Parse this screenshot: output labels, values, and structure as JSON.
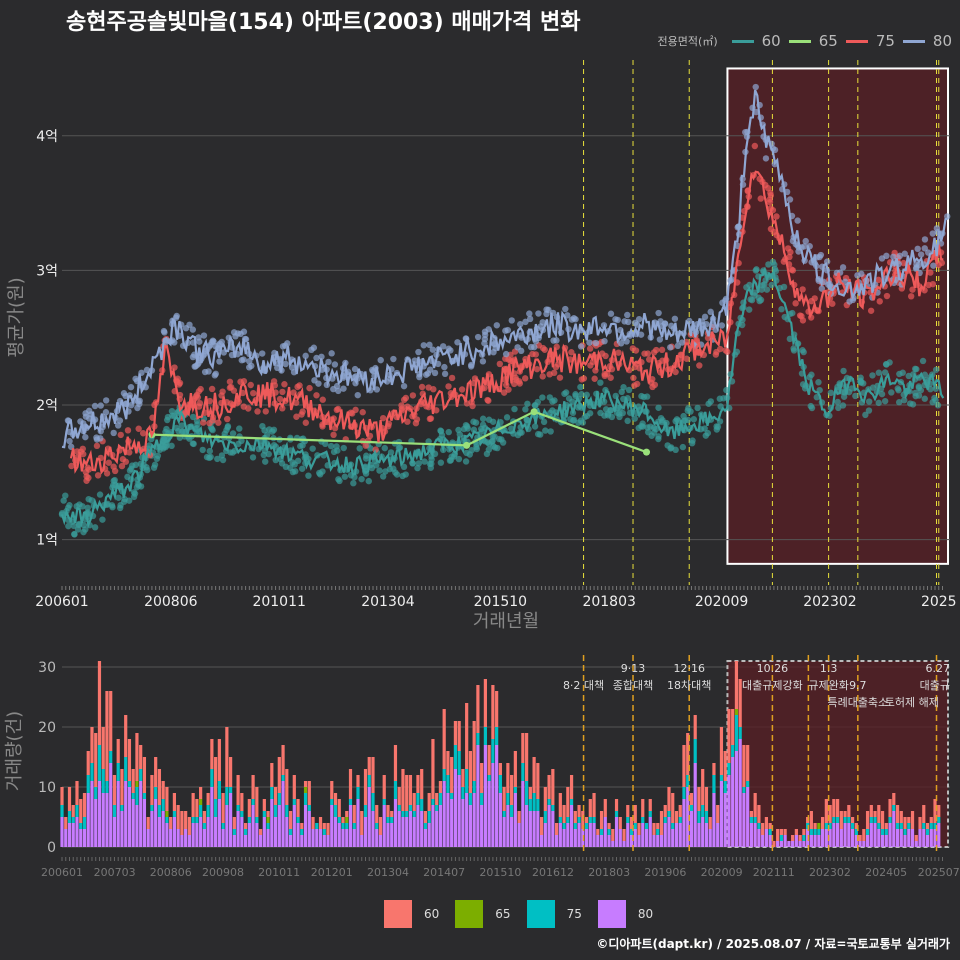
{
  "title": "송현주공솔빛마을(154) 아파트(2003) 매매가격 변화",
  "caption": "©디아파트(dapt.kr) / 2025.08.07 / 자료=국토교통부 실거래가",
  "legend": {
    "title": "전용면적(㎡)",
    "items": [
      {
        "label": "60",
        "line": "#3a9d9a",
        "bar": "#f8766d"
      },
      {
        "label": "65",
        "line": "#9ae07a",
        "bar": "#7cae00"
      },
      {
        "label": "75",
        "line": "#ee5a5a",
        "bar": "#00bfc4"
      },
      {
        "label": "80",
        "line": "#8fa6d2",
        "bar": "#c77cff"
      }
    ]
  },
  "chart_data": [
    {
      "type": "line",
      "title": "송현주공솔빛마을(154) 아파트(2003) 매매가격 변화",
      "xlabel": "거래년월",
      "ylabel": "평균가(원)",
      "x_ticks": [
        "200601",
        "200806",
        "201011",
        "201304",
        "201510",
        "201803",
        "202009",
        "202302",
        "2025"
      ],
      "y_ticks": [
        "1억",
        "2억",
        "3억",
        "4억"
      ],
      "y_unit": "억원",
      "ylim": [
        0.7,
        4.6
      ],
      "xlim": [
        2006.0,
        2025.75
      ],
      "highlight_region": [
        2020.8,
        2025.75
      ],
      "vlines": [
        2017.6,
        2018.7,
        2019.95,
        2021.8,
        2023.05,
        2023.7,
        2025.45,
        2025.5
      ],
      "series": [
        {
          "name": "60",
          "x": [
            2006.0,
            2006.5,
            2007.0,
            2007.5,
            2008.0,
            2008.6,
            2009.0,
            2009.5,
            2010.0,
            2010.5,
            2011.0,
            2011.5,
            2012.0,
            2012.5,
            2013.0,
            2013.5,
            2014.0,
            2014.5,
            2015.0,
            2015.5,
            2016.0,
            2016.5,
            2017.0,
            2017.5,
            2018.0,
            2018.5,
            2019.0,
            2019.5,
            2020.0,
            2020.5,
            2020.8,
            2021.0,
            2021.3,
            2021.5,
            2021.8,
            2022.0,
            2022.2,
            2022.4,
            2022.6,
            2022.8,
            2023.0,
            2023.3,
            2023.6,
            2023.9,
            2024.2,
            2024.5,
            2024.8,
            2025.1,
            2025.4,
            2025.6
          ],
          "y": [
            1.2,
            1.15,
            1.3,
            1.4,
            1.65,
            1.9,
            1.78,
            1.72,
            1.7,
            1.72,
            1.65,
            1.6,
            1.58,
            1.55,
            1.58,
            1.6,
            1.65,
            1.7,
            1.72,
            1.78,
            1.85,
            1.9,
            1.95,
            2.0,
            2.05,
            2.0,
            1.95,
            1.78,
            1.85,
            1.9,
            2.0,
            2.5,
            2.85,
            2.9,
            3.0,
            2.8,
            2.6,
            2.35,
            2.15,
            2.05,
            1.95,
            2.1,
            2.2,
            2.05,
            2.15,
            2.2,
            2.1,
            2.2,
            2.15,
            2.1
          ]
        },
        {
          "name": "65",
          "x": [
            2008.0,
            2015.0,
            2016.5,
            2019.0
          ],
          "y": [
            1.78,
            1.7,
            1.95,
            1.65
          ]
        },
        {
          "name": "75",
          "x": [
            2006.2,
            2006.6,
            2007.0,
            2007.5,
            2008.0,
            2008.3,
            2008.6,
            2009.0,
            2009.5,
            2010.0,
            2011.0,
            2011.5,
            2012.0,
            2012.5,
            2013.0,
            2013.5,
            2014.0,
            2014.5,
            2015.0,
            2015.5,
            2016.0,
            2016.5,
            2017.0,
            2017.5,
            2018.0,
            2018.5,
            2019.0,
            2019.5,
            2020.0,
            2020.5,
            2020.8,
            2021.0,
            2021.2,
            2021.4,
            2021.6,
            2021.8,
            2022.0,
            2022.2,
            2022.4,
            2022.6,
            2022.8,
            2023.0,
            2023.3,
            2023.6,
            2023.9,
            2024.2,
            2024.5,
            2024.8,
            2025.1,
            2025.4,
            2025.6
          ],
          "y": [
            1.6,
            1.55,
            1.62,
            1.7,
            1.75,
            2.4,
            2.05,
            2.0,
            2.0,
            2.1,
            2.05,
            2.0,
            1.9,
            1.85,
            1.8,
            1.9,
            2.0,
            2.05,
            2.1,
            2.15,
            2.25,
            2.3,
            2.35,
            2.3,
            2.35,
            2.3,
            2.25,
            2.3,
            2.4,
            2.45,
            2.5,
            3.0,
            3.5,
            3.8,
            3.6,
            3.4,
            3.2,
            3.0,
            2.8,
            2.7,
            2.75,
            2.8,
            2.9,
            2.85,
            2.8,
            2.9,
            3.0,
            2.95,
            2.9,
            3.05,
            3.15
          ]
        },
        {
          "name": "80",
          "x": [
            2006.0,
            2006.5,
            2007.0,
            2007.5,
            2008.0,
            2008.5,
            2008.8,
            2009.0,
            2009.5,
            2010.0,
            2010.5,
            2011.0,
            2011.5,
            2012.0,
            2012.5,
            2013.0,
            2013.5,
            2014.0,
            2014.5,
            2015.0,
            2015.5,
            2016.0,
            2016.5,
            2017.0,
            2017.5,
            2018.0,
            2018.5,
            2019.0,
            2019.5,
            2020.0,
            2020.5,
            2020.8,
            2021.0,
            2021.2,
            2021.4,
            2021.6,
            2021.8,
            2022.0,
            2022.2,
            2022.4,
            2022.6,
            2022.8,
            2023.0,
            2023.3,
            2023.6,
            2023.9,
            2024.2,
            2024.5,
            2024.8,
            2025.1,
            2025.4,
            2025.7
          ],
          "y": [
            1.75,
            1.85,
            1.9,
            2.0,
            2.3,
            2.6,
            2.5,
            2.4,
            2.35,
            2.45,
            2.3,
            2.35,
            2.3,
            2.25,
            2.2,
            2.2,
            2.25,
            2.3,
            2.35,
            2.4,
            2.45,
            2.5,
            2.55,
            2.6,
            2.55,
            2.6,
            2.55,
            2.6,
            2.5,
            2.55,
            2.6,
            2.75,
            3.2,
            3.9,
            4.3,
            4.0,
            3.85,
            3.7,
            3.4,
            3.2,
            3.1,
            3.0,
            2.95,
            2.9,
            2.85,
            2.9,
            2.95,
            3.0,
            3.05,
            3.1,
            3.15,
            3.35
          ]
        }
      ]
    },
    {
      "type": "bar",
      "stacked": true,
      "xlabel": "",
      "ylabel": "거래량(건)",
      "y_ticks": [
        0,
        10,
        20,
        30
      ],
      "ylim": [
        0,
        32
      ],
      "x_ticks": [
        "200601",
        "200703",
        "200806",
        "200908",
        "201011",
        "201201",
        "201304",
        "201407",
        "201510",
        "201612",
        "201803",
        "201906",
        "202009",
        "202111",
        "202302",
        "202405",
        "202507"
      ],
      "highlight_region": [
        2020.8,
        2025.75
      ],
      "vlines": [
        2017.6,
        2018.7,
        2019.95,
        2021.8,
        2022.6,
        2023.05,
        2023.7,
        2025.45
      ],
      "annotations": [
        {
          "label": "8·2 대책",
          "x": 2017.6,
          "row": 1
        },
        {
          "label": "9·13",
          "x": 2018.7,
          "row": 0
        },
        {
          "label": "종합대책",
          "x": 2018.7,
          "row": 1
        },
        {
          "label": "12·16",
          "x": 2019.95,
          "row": 0
        },
        {
          "label": "18차대책",
          "x": 2019.95,
          "row": 1
        },
        {
          "label": "10.26",
          "x": 2021.8,
          "row": 0
        },
        {
          "label": "대출규제강화",
          "x": 2021.8,
          "row": 1
        },
        {
          "label": "1.3",
          "x": 2023.05,
          "row": 0
        },
        {
          "label": "규제완화",
          "x": 2023.05,
          "row": 1
        },
        {
          "label": "9.7",
          "x": 2023.7,
          "row": 1
        },
        {
          "label": "특례대출축소",
          "x": 2023.7,
          "row": 2
        },
        {
          "label": "토허제 해제",
          "x": 2024.9,
          "row": 2
        },
        {
          "label": "6.27",
          "x": 2025.45,
          "row": 0
        },
        {
          "label": "대출규",
          "x": 2025.45,
          "row": 1
        }
      ],
      "series_names": [
        "60",
        "65",
        "75",
        "80"
      ],
      "monthly_totals_note": "monthly stacked volumes 2006-01 to 2025-07",
      "volume_profile": [
        [
          2006.0,
          8
        ],
        [
          2006.3,
          14
        ],
        [
          2006.6,
          20
        ],
        [
          2006.9,
          26
        ],
        [
          2007.2,
          18
        ],
        [
          2007.5,
          15
        ],
        [
          2007.8,
          12
        ],
        [
          2008.1,
          10
        ],
        [
          2008.4,
          8
        ],
        [
          2008.7,
          6
        ],
        [
          2009.0,
          9
        ],
        [
          2009.3,
          12
        ],
        [
          2009.6,
          14
        ],
        [
          2009.9,
          10
        ],
        [
          2010.2,
          8
        ],
        [
          2010.5,
          7
        ],
        [
          2010.8,
          12
        ],
        [
          2011.1,
          10
        ],
        [
          2011.4,
          8
        ],
        [
          2011.7,
          7
        ],
        [
          2012.0,
          9
        ],
        [
          2012.3,
          8
        ],
        [
          2012.6,
          10
        ],
        [
          2012.9,
          12
        ],
        [
          2013.2,
          14
        ],
        [
          2013.5,
          12
        ],
        [
          2013.8,
          10
        ],
        [
          2014.1,
          14
        ],
        [
          2014.4,
          16
        ],
        [
          2014.7,
          18
        ],
        [
          2015.0,
          20
        ],
        [
          2015.3,
          22
        ],
        [
          2015.6,
          18
        ],
        [
          2015.9,
          16
        ],
        [
          2016.2,
          14
        ],
        [
          2016.5,
          12
        ],
        [
          2016.8,
          10
        ],
        [
          2017.1,
          9
        ],
        [
          2017.4,
          8
        ],
        [
          2017.7,
          6
        ],
        [
          2018.0,
          7
        ],
        [
          2018.3,
          6
        ],
        [
          2018.6,
          5
        ],
        [
          2018.9,
          6
        ],
        [
          2019.2,
          5
        ],
        [
          2019.5,
          8
        ],
        [
          2019.8,
          14
        ],
        [
          2020.1,
          18
        ],
        [
          2020.4,
          12
        ],
        [
          2020.7,
          14
        ],
        [
          2021.0,
          26
        ],
        [
          2021.2,
          14
        ],
        [
          2021.4,
          8
        ],
        [
          2021.6,
          5
        ],
        [
          2021.8,
          3
        ],
        [
          2022.0,
          2
        ],
        [
          2022.2,
          2
        ],
        [
          2022.4,
          3
        ],
        [
          2022.6,
          4
        ],
        [
          2022.8,
          5
        ],
        [
          2023.0,
          6
        ],
        [
          2023.3,
          7
        ],
        [
          2023.6,
          6
        ],
        [
          2023.9,
          5
        ],
        [
          2024.2,
          6
        ],
        [
          2024.5,
          7
        ],
        [
          2024.8,
          6
        ],
        [
          2025.1,
          5
        ],
        [
          2025.4,
          6
        ],
        [
          2025.6,
          5
        ]
      ]
    }
  ]
}
